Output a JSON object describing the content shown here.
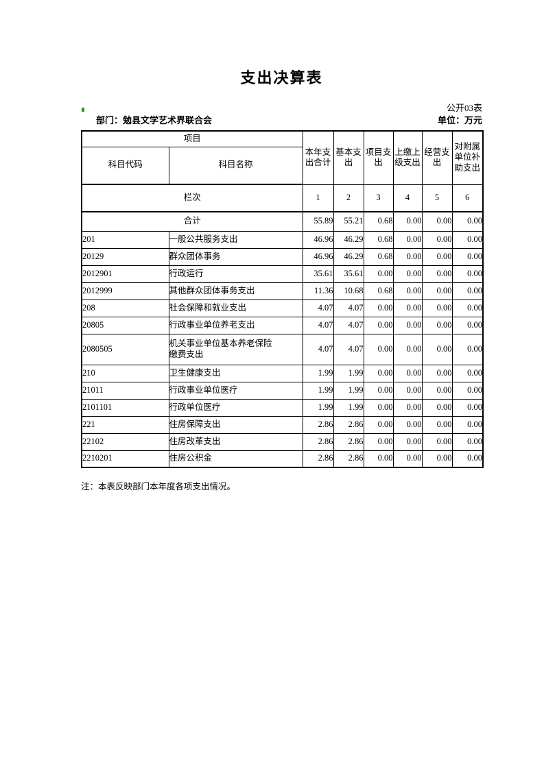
{
  "page": {
    "title": "支出决算表",
    "form_code": "公开03表",
    "department": "部门：勉县文学艺术界联合会",
    "unit": "单位：万元",
    "note": "注：本表反映部门本年度各项支出情况。"
  },
  "table": {
    "header": {
      "project": "项目",
      "code_label": "科目代码",
      "name_label": "科目名称",
      "cols": [
        "本年支出合计",
        "基本支出",
        "项目支出",
        "上缴上级支出",
        "经营支出",
        "对附属单位补助支出"
      ]
    },
    "lanci": {
      "label": "栏次",
      "numbers": [
        "1",
        "2",
        "3",
        "4",
        "5",
        "6"
      ]
    },
    "total": {
      "label": "合计",
      "values": [
        "55.89",
        "55.21",
        "0.68",
        "0.00",
        "0.00",
        "0.00"
      ]
    },
    "rows": [
      {
        "code": "201",
        "name": "一般公共服务支出",
        "values": [
          "46.96",
          "46.29",
          "0.68",
          "0.00",
          "0.00",
          "0.00"
        ]
      },
      {
        "code": "20129",
        "name": "群众团体事务",
        "values": [
          "46.96",
          "46.29",
          "0.68",
          "0.00",
          "0.00",
          "0.00"
        ]
      },
      {
        "code": "2012901",
        "name": "行政运行",
        "values": [
          "35.61",
          "35.61",
          "0.00",
          "0.00",
          "0.00",
          "0.00"
        ]
      },
      {
        "code": "2012999",
        "name": "其他群众团体事务支出",
        "values": [
          "11.36",
          "10.68",
          "0.68",
          "0.00",
          "0.00",
          "0.00"
        ]
      },
      {
        "code": "208",
        "name": "社会保障和就业支出",
        "values": [
          "4.07",
          "4.07",
          "0.00",
          "0.00",
          "0.00",
          "0.00"
        ]
      },
      {
        "code": "20805",
        "name": "行政事业单位养老支出",
        "values": [
          "4.07",
          "4.07",
          "0.00",
          "0.00",
          "0.00",
          "0.00"
        ]
      },
      {
        "code": "2080505",
        "name": "机关事业单位基本养老保险\n缴费支出",
        "values": [
          "4.07",
          "4.07",
          "0.00",
          "0.00",
          "0.00",
          "0.00"
        ]
      },
      {
        "code": "210",
        "name": "卫生健康支出",
        "values": [
          "1.99",
          "1.99",
          "0.00",
          "0.00",
          "0.00",
          "0.00"
        ]
      },
      {
        "code": "21011",
        "name": "行政事业单位医疗",
        "values": [
          "1.99",
          "1.99",
          "0.00",
          "0.00",
          "0.00",
          "0.00"
        ]
      },
      {
        "code": "2101101",
        "name": "行政单位医疗",
        "values": [
          "1.99",
          "1.99",
          "0.00",
          "0.00",
          "0.00",
          "0.00"
        ]
      },
      {
        "code": "221",
        "name": "住房保障支出",
        "values": [
          "2.86",
          "2.86",
          "0.00",
          "0.00",
          "0.00",
          "0.00"
        ]
      },
      {
        "code": "22102",
        "name": "住房改革支出",
        "values": [
          "2.86",
          "2.86",
          "0.00",
          "0.00",
          "0.00",
          "0.00"
        ]
      },
      {
        "code": "2210201",
        "name": "住房公积金",
        "values": [
          "2.86",
          "2.86",
          "0.00",
          "0.00",
          "0.00",
          "0.00"
        ]
      }
    ]
  },
  "colors": {
    "text": "#000000",
    "background": "#ffffff",
    "cell_marker_green": "#1f9a1f"
  }
}
